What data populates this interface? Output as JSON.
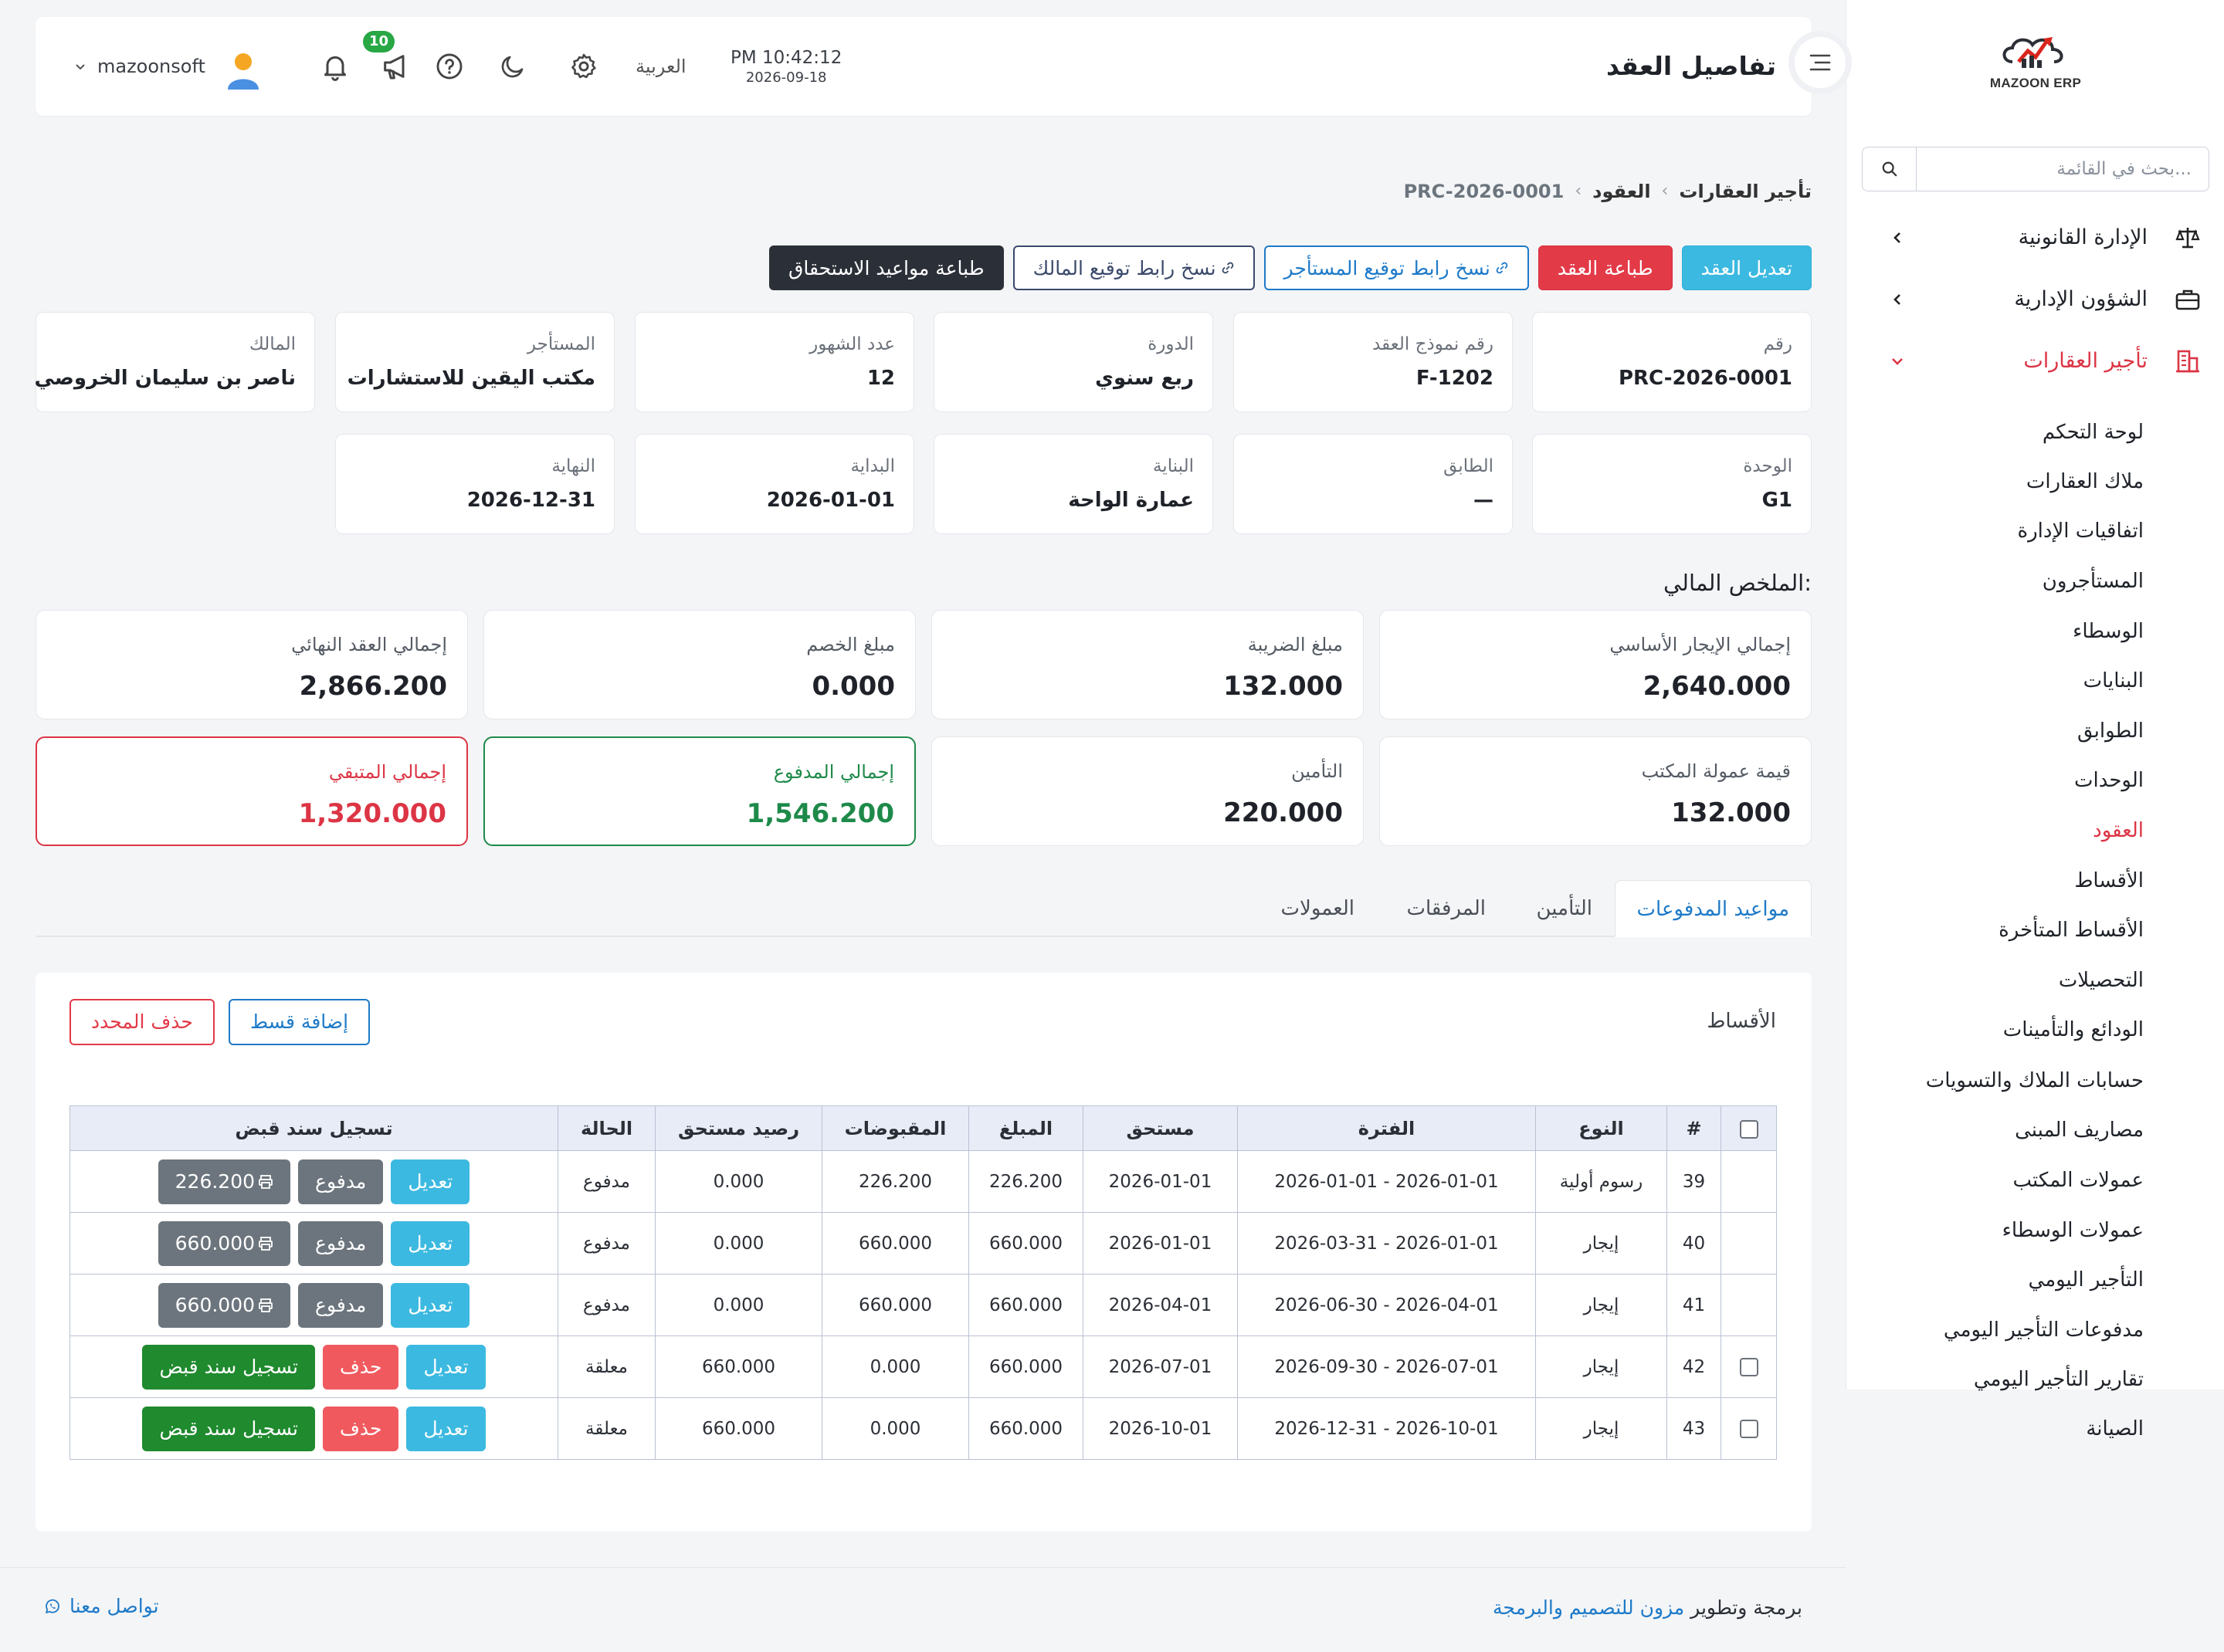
{
  "brand": {
    "logo_text": "MAZOON ERP",
    "logo_small": "ERPملك"
  },
  "sidebar": {
    "search_placeholder": "بحث في القائمة...",
    "groups": [
      {
        "label": "الإدارة القانونية",
        "icon": "scales-icon"
      },
      {
        "label": "الشؤون الإدارية",
        "icon": "briefcase-icon"
      },
      {
        "label": "تأجير العقارات",
        "icon": "building-icon",
        "active": true
      }
    ],
    "items": [
      "لوحة التحكم",
      "ملاك العقارات",
      "اتفاقيات الإدارة",
      "المستأجرون",
      "الوسطاء",
      "البنايات",
      "الطوابق",
      "الوحدات",
      "العقود",
      "الأقساط",
      "الأقساط المتأخرة",
      "التحصيلات",
      "الودائع والتأمينات",
      "حسابات الملاك والتسويات",
      "مصاريف المبنى",
      "عمولات المكتب",
      "عمولات الوسطاء",
      "التأجير اليومي",
      "مدفوعات التأجير اليومي",
      "تقارير التأجير اليومي",
      "الصيانة"
    ],
    "active_item": "العقود"
  },
  "header": {
    "title": "تفاصيل العقد",
    "time": "PM 10:42:12",
    "date": "2026-09-18",
    "language": "العربية",
    "notification_count": "10",
    "username": "mazoonsoft"
  },
  "breadcrumb": {
    "root": "تأجير العقارات",
    "section": "العقود",
    "current": "PRC-2026-0001",
    "sep": "‹"
  },
  "actions": {
    "edit": "تعديل العقد",
    "print": "طباعة العقد",
    "copy_tenant": "نسخ رابط توقيع المستأجر",
    "copy_owner": "نسخ رابط توقيع المالك",
    "print_schedule": "طباعة مواعيد الاستحقاق"
  },
  "details": {
    "number": {
      "label": "رقم",
      "value": "PRC-2026-0001"
    },
    "form_no": {
      "label": "رقم نموذج العقد",
      "value": "F-1202"
    },
    "cycle": {
      "label": "الدورة",
      "value": "ربع سنوي"
    },
    "months": {
      "label": "عدد الشهور",
      "value": "12"
    },
    "tenant": {
      "label": "المستأجر",
      "value": "مكتب اليقين للاستشارات"
    },
    "owner": {
      "label": "المالك",
      "value": "ناصر بن سليمان الخروصي"
    },
    "unit": {
      "label": "الوحدة",
      "value": "G1"
    },
    "floor": {
      "label": "الطابق",
      "value": "—"
    },
    "building": {
      "label": "البناية",
      "value": "عمارة الواحة"
    },
    "start": {
      "label": "البداية",
      "value": "2026-01-01"
    },
    "end": {
      "label": "النهاية",
      "value": "2026-12-31"
    }
  },
  "financial": {
    "title": "الملخص المالي:",
    "base_rent": {
      "label": "إجمالي الإيجار الأساسي",
      "value": "2,640.000"
    },
    "tax": {
      "label": "مبلغ الضريبة",
      "value": "132.000"
    },
    "discount": {
      "label": "مبلغ الخصم",
      "value": "0.000"
    },
    "final_total": {
      "label": "إجمالي العقد النهائي",
      "value": "2,866.200"
    },
    "commission": {
      "label": "قيمة عمولة المكتب",
      "value": "132.000"
    },
    "insurance": {
      "label": "التأمين",
      "value": "220.000"
    },
    "paid": {
      "label": "إجمالي المدفوع",
      "value": "1,546.200"
    },
    "remaining": {
      "label": "إجمالي المتبقي",
      "value": "1,320.000"
    },
    "paid_color": "#1e8a4a",
    "remaining_color": "#dc3545"
  },
  "tabs": [
    "مواعيد المدفوعات",
    "التأمين",
    "المرفقات",
    "العمولات"
  ],
  "installments": {
    "title": "الأقساط",
    "add_label": "إضافة قسط",
    "delete_selected_label": "حذف المحدد",
    "headers": [
      "#",
      "النوع",
      "الفترة",
      "مستحق",
      "المبلغ",
      "المقبوضات",
      "رصيد مستحق",
      "الحالة",
      "تسجيل سند قبض"
    ],
    "paid_label": "مدفوع",
    "edit_label": "تعديل",
    "delete_label": "حذف",
    "receipt_label": "تسجيل سند قبض",
    "rows": [
      {
        "no": "39",
        "type": "رسوم أولية",
        "period": "2026-01-01 - 2026-01-01",
        "due": "2026-01-01",
        "amount": "226.200",
        "received": "226.200",
        "balance": "0.000",
        "status": "مدفوع",
        "receipt_amount": "226.200",
        "paid": true
      },
      {
        "no": "40",
        "type": "إيجار",
        "period": "2026-03-31 - 2026-01-01",
        "due": "2026-01-01",
        "amount": "660.000",
        "received": "660.000",
        "balance": "0.000",
        "status": "مدفوع",
        "receipt_amount": "660.000",
        "paid": true
      },
      {
        "no": "41",
        "type": "إيجار",
        "period": "2026-06-30 - 2026-04-01",
        "due": "2026-04-01",
        "amount": "660.000",
        "received": "660.000",
        "balance": "0.000",
        "status": "مدفوع",
        "receipt_amount": "660.000",
        "paid": true
      },
      {
        "no": "42",
        "type": "إيجار",
        "period": "2026-09-30 - 2026-07-01",
        "due": "2026-07-01",
        "amount": "660.000",
        "received": "0.000",
        "balance": "660.000",
        "status": "معلقة",
        "paid": false
      },
      {
        "no": "43",
        "type": "إيجار",
        "period": "2026-12-31 - 2026-10-01",
        "due": "2026-10-01",
        "amount": "660.000",
        "received": "0.000",
        "balance": "660.000",
        "status": "معلقة",
        "paid": false
      }
    ]
  },
  "footer": {
    "prefix": "برمجة وتطوير",
    "company": "مزون للتصميم والبرمجة",
    "contact": "تواصل معنا"
  }
}
